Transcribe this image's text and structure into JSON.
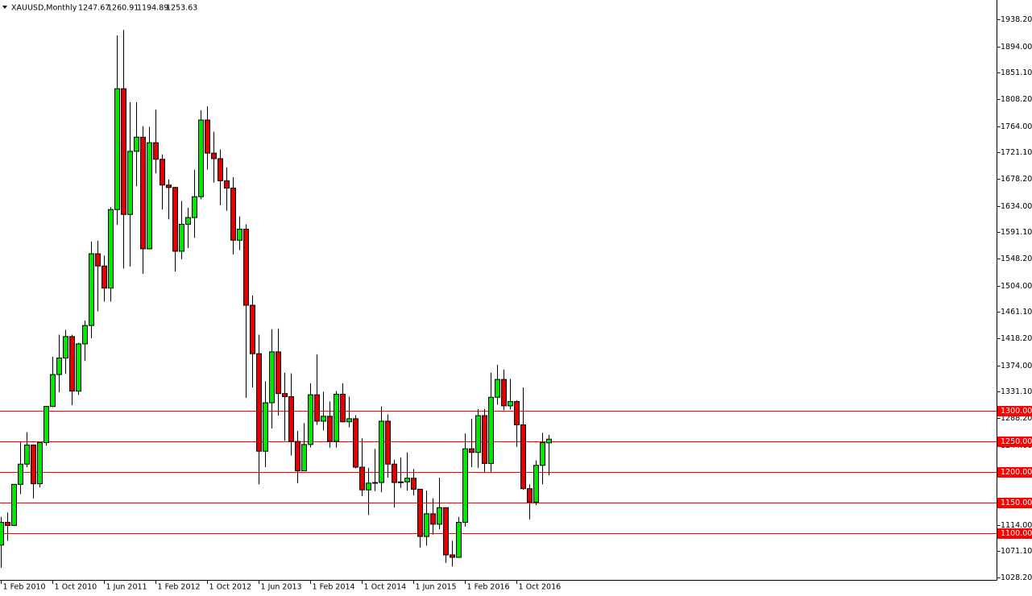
{
  "chart_data": {
    "type": "candlestick",
    "title": "XAUUSD,Monthly",
    "categories": [
      "1 Feb 2010",
      null,
      null,
      null,
      null,
      null,
      null,
      null,
      "1 Oct 2010",
      null,
      null,
      null,
      null,
      null,
      null,
      null,
      "1 Jun 2011",
      null,
      null,
      null,
      null,
      null,
      null,
      null,
      "1 Feb 2012",
      null,
      null,
      null,
      null,
      null,
      null,
      null,
      "1 Oct 2012",
      null,
      null,
      null,
      null,
      null,
      null,
      null,
      "1 Jun 2013",
      null,
      null,
      null,
      null,
      null,
      null,
      null,
      "1 Feb 2014",
      null,
      null,
      null,
      null,
      null,
      null,
      null,
      "1 Oct 2014",
      null,
      null,
      null,
      null,
      null,
      null,
      null,
      "1 Jun 2015",
      null,
      null,
      null,
      null,
      null,
      null,
      null,
      "1 Feb 2016",
      null,
      null,
      null,
      null,
      null,
      null,
      null,
      "1 Oct 2016",
      null,
      null,
      null,
      null,
      null
    ],
    "open": [
      1081,
      1118,
      1113,
      1180,
      1213,
      1244,
      1181,
      1248,
      1307,
      1359,
      1386,
      1421,
      1332,
      1409,
      1439,
      1556,
      1536,
      1500,
      1628,
      1825,
      1620,
      1723,
      1746,
      1564,
      1737,
      1710,
      1668,
      1664,
      1560,
      1604,
      1615,
      1649,
      1774,
      1720,
      1711,
      1675,
      1663,
      1578,
      1596,
      1472,
      1393,
      1234,
      1313,
      1396,
      1328,
      1323,
      1250,
      1202,
      1245,
      1326,
      1283,
      1291,
      1250,
      1327,
      1282,
      1287,
      1208,
      1171,
      1182,
      1183,
      1283,
      1213,
      1183,
      1184,
      1190,
      1172,
      1095,
      1132,
      1115,
      1142,
      1065,
      1061,
      1118,
      1238,
      1232,
      1292,
      1214,
      1322,
      1351,
      1308,
      1315,
      1277,
      1173,
      1151,
      1211,
      1247.67
    ],
    "high": [
      1127,
      1134,
      1180,
      1249,
      1265,
      1245,
      1248,
      1308,
      1388,
      1424,
      1432,
      1424,
      1411,
      1447,
      1576,
      1577,
      1553,
      1632,
      1912,
      1921,
      1803,
      1803,
      1764,
      1763,
      1791,
      1718,
      1677,
      1665,
      1642,
      1631,
      1693,
      1790,
      1796,
      1755,
      1726,
      1697,
      1681,
      1617,
      1604,
      1488,
      1424,
      1348,
      1433,
      1434,
      1362,
      1361,
      1267,
      1280,
      1345,
      1392,
      1331,
      1315,
      1332,
      1345,
      1323,
      1293,
      1255,
      1207,
      1238,
      1307,
      1294,
      1220,
      1224,
      1232,
      1205,
      1173,
      1170,
      1157,
      1191,
      1142,
      1088,
      1127,
      1263,
      1287,
      1303,
      1303,
      1362,
      1375,
      1367,
      1352,
      1317,
      1338,
      1180,
      1219,
      1264,
      1260.91
    ],
    "low": [
      1044,
      1088,
      1112,
      1164,
      1208,
      1157,
      1175,
      1243,
      1306,
      1330,
      1360,
      1309,
      1326,
      1381,
      1418,
      1462,
      1478,
      1478,
      1603,
      1532,
      1535,
      1666,
      1523,
      1564,
      1687,
      1628,
      1612,
      1527,
      1547,
      1565,
      1582,
      1645,
      1693,
      1672,
      1635,
      1626,
      1555,
      1562,
      1321,
      1338,
      1180,
      1208,
      1271,
      1292,
      1251,
      1227,
      1182,
      1202,
      1240,
      1277,
      1268,
      1240,
      1240,
      1281,
      1273,
      1206,
      1161,
      1130,
      1169,
      1167,
      1191,
      1142,
      1174,
      1170,
      1162,
      1077,
      1080,
      1098,
      1107,
      1052,
      1046,
      1061,
      1111,
      1208,
      1207,
      1199,
      1199,
      1310,
      1301,
      1302,
      1241,
      1171,
      1123,
      1146,
      1180,
      1194.89
    ],
    "close": [
      1118,
      1113,
      1180,
      1213,
      1244,
      1181,
      1248,
      1307,
      1359,
      1386,
      1421,
      1332,
      1409,
      1439,
      1556,
      1536,
      1500,
      1628,
      1825,
      1620,
      1723,
      1746,
      1564,
      1737,
      1710,
      1668,
      1664,
      1560,
      1604,
      1615,
      1649,
      1774,
      1720,
      1711,
      1675,
      1663,
      1578,
      1596,
      1472,
      1393,
      1234,
      1313,
      1396,
      1328,
      1323,
      1250,
      1202,
      1245,
      1326,
      1283,
      1291,
      1250,
      1327,
      1282,
      1287,
      1208,
      1171,
      1182,
      1183,
      1283,
      1213,
      1183,
      1184,
      1190,
      1172,
      1095,
      1132,
      1115,
      1142,
      1065,
      1061,
      1118,
      1238,
      1232,
      1292,
      1214,
      1322,
      1351,
      1308,
      1315,
      1277,
      1173,
      1151,
      1211,
      1248,
      1253.63
    ],
    "up_color": "#00e600",
    "down_color": "#e00000",
    "ylim": [
      1024.2,
      1969.7
    ],
    "yticks": [
      {
        "value": 1938.2,
        "label": "1938.20"
      },
      {
        "value": 1894,
        "label": "1894.00"
      },
      {
        "value": 1851.1,
        "label": "1851.10"
      },
      {
        "value": 1808.2,
        "label": "1808.20"
      },
      {
        "value": 1764,
        "label": "1764.00"
      },
      {
        "value": 1721.1,
        "label": "1721.10"
      },
      {
        "value": 1678.2,
        "label": "1678.20"
      },
      {
        "value": 1634,
        "label": "1634.00"
      },
      {
        "value": 1591.1,
        "label": "1591.10"
      },
      {
        "value": 1548.2,
        "label": "1548.20"
      },
      {
        "value": 1504,
        "label": "1504.00"
      },
      {
        "value": 1461.1,
        "label": "1461.10"
      },
      {
        "value": 1418.2,
        "label": "1418.20"
      },
      {
        "value": 1374,
        "label": "1374.00"
      },
      {
        "value": 1331.1,
        "label": "1331.10"
      },
      {
        "value": 1288.2,
        "label": "1288.20"
      },
      {
        "value": 1244,
        "label": "1244.00"
      },
      {
        "value": 1114,
        "label": "1114.00"
      },
      {
        "value": 1071.1,
        "label": "1071.10"
      },
      {
        "value": 1028.2,
        "label": "1028.20"
      }
    ],
    "levels": [
      {
        "value": 1300,
        "label": "1300.00"
      },
      {
        "value": 1250,
        "label": "1250.00"
      },
      {
        "value": 1200,
        "label": "1200.00"
      },
      {
        "value": 1150,
        "label": "1150.00"
      },
      {
        "value": 1100,
        "label": "1100.00"
      }
    ],
    "level_color": "#ff0000"
  }
}
